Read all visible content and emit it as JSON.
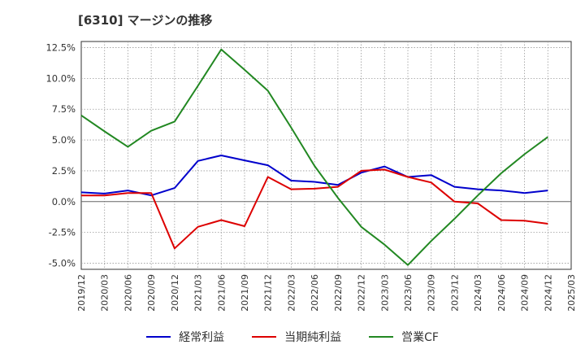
{
  "title": "[6310]  マージンの推移",
  "chart_data": {
    "type": "line",
    "x": [
      "2019/12",
      "2020/03",
      "2020/06",
      "2020/09",
      "2020/12",
      "2021/03",
      "2021/06",
      "2021/09",
      "2021/12",
      "2022/03",
      "2022/06",
      "2022/09",
      "2022/12",
      "2023/03",
      "2023/06",
      "2023/09",
      "2023/12",
      "2024/03",
      "2024/06",
      "2024/09",
      "2024/12",
      "2025/03"
    ],
    "ylim": [
      -5.5,
      13.0
    ],
    "yticks": [
      -5.0,
      -2.5,
      0.0,
      2.5,
      5.0,
      7.5,
      10.0,
      12.5
    ],
    "ytick_labels": [
      "-5.0%",
      "-2.5%",
      "0.0%",
      "2.5%",
      "5.0%",
      "7.5%",
      "10.0%",
      "12.5%"
    ],
    "grid": true,
    "legend_position": "bottom",
    "series": [
      {
        "name": "経常利益",
        "color": "#0000cc",
        "values": [
          0.75,
          0.65,
          0.9,
          0.5,
          1.1,
          3.3,
          3.75,
          3.35,
          2.95,
          1.7,
          1.6,
          1.35,
          2.35,
          2.85,
          2.0,
          2.15,
          1.2,
          1.0,
          0.9,
          0.7,
          0.9,
          null
        ]
      },
      {
        "name": "当期純利益",
        "color": "#dd0000",
        "values": [
          0.5,
          0.5,
          0.7,
          0.7,
          -3.8,
          -2.05,
          -1.5,
          -2.0,
          2.0,
          1.0,
          1.05,
          1.2,
          2.5,
          2.6,
          2.0,
          1.55,
          0.0,
          -0.15,
          -1.5,
          -1.55,
          -1.8,
          null
        ]
      },
      {
        "name": "営業CF",
        "color": "#228822",
        "values": [
          7.0,
          5.7,
          4.45,
          5.75,
          6.5,
          9.4,
          12.35,
          10.7,
          9.0,
          6.0,
          2.9,
          0.3,
          -2.05,
          -3.5,
          -5.15,
          -3.2,
          -1.4,
          0.5,
          2.3,
          3.85,
          5.25,
          null
        ]
      }
    ]
  }
}
